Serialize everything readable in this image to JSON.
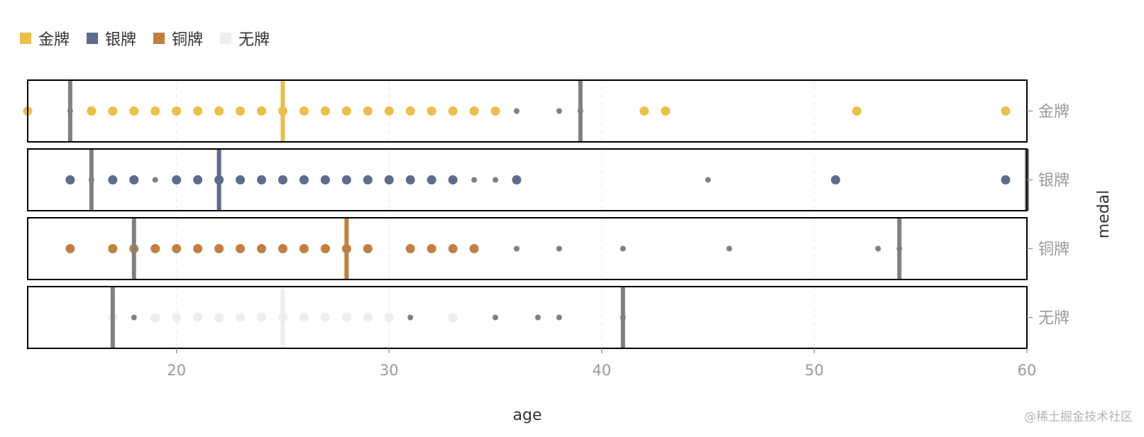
{
  "legend": {
    "items": [
      {
        "label": "金牌",
        "color": "#EBBF48"
      },
      {
        "label": "银牌",
        "color": "#5E6B8E"
      },
      {
        "label": "铜牌",
        "color": "#C17F40"
      },
      {
        "label": "无牌",
        "color": "#EEEEEE"
      }
    ]
  },
  "watermark": "@稀土掘金技术社区",
  "chart_data": {
    "type": "scatter",
    "xlabel": "age",
    "ylabel": "medal",
    "xlim": [
      13,
      60
    ],
    "xticks": [
      20,
      30,
      40,
      50,
      60
    ],
    "grid": "vertical dashed",
    "legend_position": "top-left",
    "outlier_color": "#808080",
    "facets": [
      {
        "label": "金牌",
        "color": "#EBBF48",
        "colored_points": [
          13,
          16,
          17,
          18,
          19,
          20,
          21,
          22,
          23,
          24,
          25,
          26,
          27,
          28,
          29,
          30,
          31,
          32,
          33,
          34,
          35,
          42,
          43,
          52,
          59
        ],
        "gray_points": [
          15,
          36,
          38,
          39
        ],
        "gray_lines": [
          15,
          39
        ],
        "colored_line": 25
      },
      {
        "label": "银牌",
        "color": "#5E6B8E",
        "colored_points": [
          15,
          17,
          18,
          20,
          21,
          22,
          23,
          24,
          25,
          26,
          27,
          28,
          29,
          30,
          31,
          32,
          33,
          36,
          51,
          59
        ],
        "gray_points": [
          16,
          19,
          34,
          35,
          45
        ],
        "gray_lines": [
          16,
          60
        ],
        "colored_line": 22
      },
      {
        "label": "铜牌",
        "color": "#C17F40",
        "colored_points": [
          15,
          17,
          18,
          19,
          20,
          21,
          22,
          23,
          24,
          25,
          26,
          27,
          28,
          29,
          31,
          32,
          33,
          34
        ],
        "gray_points": [
          36,
          38,
          41,
          46,
          53,
          54
        ],
        "gray_lines": [
          18,
          54
        ],
        "colored_line": 28
      },
      {
        "label": "无牌",
        "color": "#EEEEEE",
        "colored_points": [
          17,
          19,
          20,
          21,
          22,
          23,
          24,
          25,
          26,
          27,
          28,
          29,
          30,
          33
        ],
        "gray_points": [
          18,
          31,
          35,
          37,
          38,
          41
        ],
        "gray_lines": [
          17,
          41
        ],
        "colored_line": 25
      }
    ]
  }
}
